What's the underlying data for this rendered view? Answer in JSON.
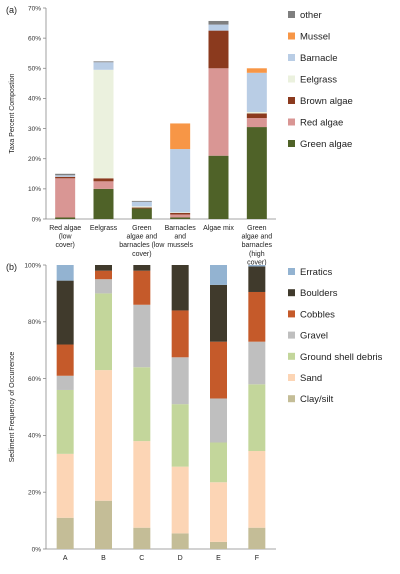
{
  "chart_data": [
    {
      "type": "bar",
      "stacked": true,
      "panel_label": "(a)",
      "ylabel": "Taxa Percent Compostion",
      "ylim": [
        0,
        70
      ],
      "yticks": [
        "0%",
        "10%",
        "20%",
        "30%",
        "40%",
        "50%",
        "60%",
        "70%"
      ],
      "legend_position": "right",
      "categories": [
        [
          "Red algae",
          "(low",
          "cover)"
        ],
        [
          "Eelgrass"
        ],
        [
          "Green",
          "algae and",
          "barnacles (low",
          "cover)"
        ],
        [
          "Barnacles",
          "and",
          "mussels"
        ],
        [
          "Algae mix"
        ],
        [
          "Green",
          "algae and",
          "barnacles",
          "(high",
          "cover)"
        ]
      ],
      "series": [
        {
          "name": "Green algae",
          "color": "#4f6228",
          "values": [
            0.5,
            10,
            3.5,
            0.5,
            21,
            30.5
          ]
        },
        {
          "name": "Red algae",
          "color": "#d99694",
          "values": [
            13,
            2.5,
            0,
            1,
            29,
            3
          ]
        },
        {
          "name": "Brown algae",
          "color": "#8b3a1e",
          "values": [
            0.5,
            1,
            0.3,
            0.5,
            12.5,
            1.5
          ]
        },
        {
          "name": "Eelgrass",
          "color": "#ebf1de",
          "values": [
            0,
            36,
            0.4,
            0.2,
            0,
            0.5
          ]
        },
        {
          "name": "Barnacle",
          "color": "#b9cde5",
          "values": [
            0.5,
            2.5,
            1.5,
            21,
            2,
            13
          ]
        },
        {
          "name": "Mussel",
          "color": "#f79646",
          "values": [
            0,
            0,
            0,
            8.5,
            0,
            1.5
          ]
        },
        {
          "name": "other",
          "color": "#7f7f7f",
          "values": [
            0.5,
            0.3,
            0.3,
            0,
            1.2,
            0
          ]
        }
      ]
    },
    {
      "type": "bar",
      "stacked": true,
      "panel_label": "(b)",
      "ylabel": "Sediment Frequency of Occurrence",
      "ylim": [
        0,
        100
      ],
      "yticks": [
        "0%",
        "20%",
        "40%",
        "60%",
        "80%",
        "100%"
      ],
      "legend_position": "right",
      "categories": [
        "A",
        "B",
        "C",
        "D",
        "E",
        "F"
      ],
      "series": [
        {
          "name": "Clay/silt",
          "color": "#c4bd97",
          "values": [
            11,
            17,
            7.5,
            5.5,
            2.5,
            7.5
          ]
        },
        {
          "name": "Sand",
          "color": "#fcd5b5",
          "values": [
            22.5,
            46,
            30.5,
            23.5,
            21,
            27
          ]
        },
        {
          "name": "Ground shell debris",
          "color": "#c3d69b",
          "values": [
            22.5,
            27,
            26,
            22,
            14,
            23.5
          ]
        },
        {
          "name": "Gravel",
          "color": "#bfbfbf",
          "values": [
            5,
            5,
            22,
            16.5,
            15.5,
            15
          ]
        },
        {
          "name": "Cobbles",
          "color": "#c55a2a",
          "values": [
            11,
            3,
            12,
            16.5,
            20,
            17.5
          ]
        },
        {
          "name": "Boulders",
          "color": "#403a2c",
          "values": [
            22.5,
            2,
            2,
            16,
            20,
            9
          ]
        },
        {
          "name": "Erratics",
          "color": "#93b3d1",
          "values": [
            5.5,
            0,
            0,
            0,
            7,
            0.5
          ]
        }
      ]
    }
  ]
}
